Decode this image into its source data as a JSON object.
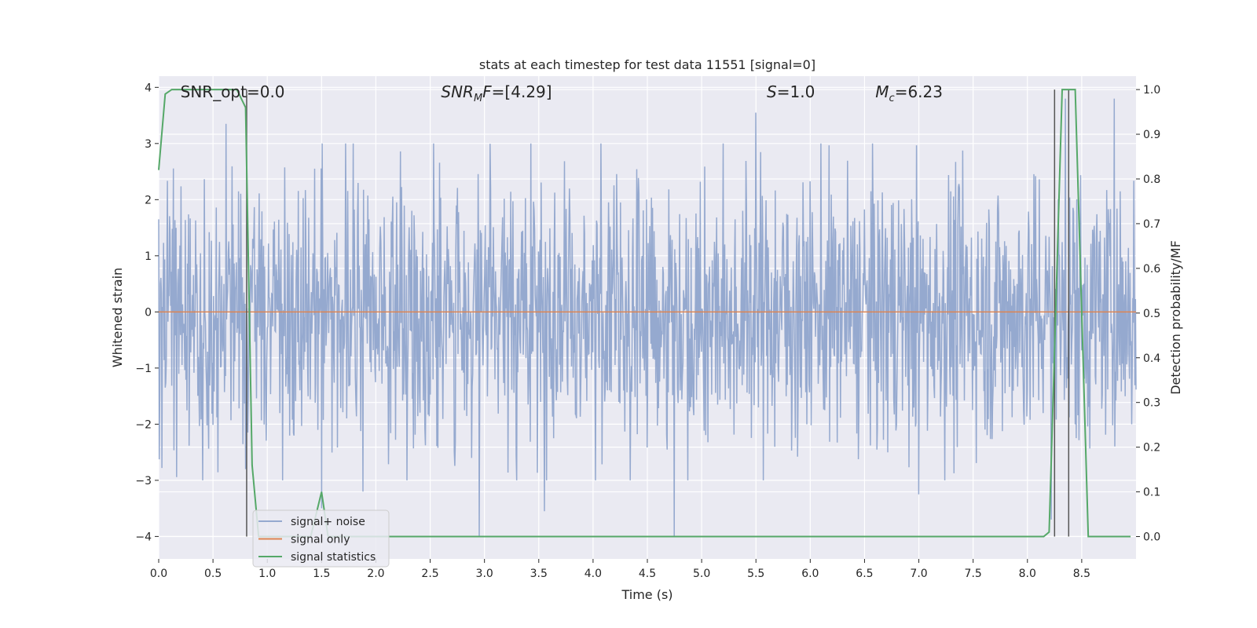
{
  "chart_data": {
    "type": "line",
    "title": "stats at each timestep for test data 11551 [signal=0]",
    "xlabel": "Time (s)",
    "ylabel": "Whitened strain",
    "y2label": "Detection probability/MF",
    "xlim": [
      0.0,
      9.0
    ],
    "ylim": [
      -4.4,
      4.2
    ],
    "y2lim": [
      -0.05,
      1.03
    ],
    "xticks": [
      0.0,
      0.5,
      1.0,
      1.5,
      2.0,
      2.5,
      3.0,
      3.5,
      4.0,
      4.5,
      5.0,
      5.5,
      6.0,
      6.5,
      7.0,
      7.5,
      8.0,
      8.5
    ],
    "xtick_labels": [
      "0.0",
      "0.5",
      "1.0",
      "1.5",
      "2.0",
      "2.5",
      "3.0",
      "3.5",
      "4.0",
      "4.5",
      "5.0",
      "5.5",
      "6.0",
      "6.5",
      "7.0",
      "7.5",
      "8.0",
      "8.5"
    ],
    "yticks": [
      -4,
      -3,
      -2,
      -1,
      0,
      1,
      2,
      3,
      4
    ],
    "ytick_labels": [
      "−4",
      "−3",
      "−2",
      "−1",
      "0",
      "1",
      "2",
      "3",
      "4"
    ],
    "y2ticks": [
      0.0,
      0.1,
      0.2,
      0.3,
      0.4,
      0.5,
      0.6,
      0.7,
      0.8,
      0.9,
      1.0
    ],
    "y2tick_labels": [
      "0.0",
      "0.1",
      "0.2",
      "0.3",
      "0.4",
      "0.5",
      "0.6",
      "0.7",
      "0.8",
      "0.9",
      "1.0"
    ],
    "grid": true,
    "legend_position": "lower-left",
    "annotations": [
      {
        "text": "SNR_opt=0.0",
        "x": 0.2
      },
      {
        "text": "SNR_MF=[4.29]",
        "x": 2.6
      },
      {
        "text": "S=1.0",
        "x": 5.6
      },
      {
        "text": "M_c=6.23",
        "x": 6.6
      }
    ],
    "series": [
      {
        "name": "signal+ noise",
        "color": "#95a9cf",
        "axis": "left",
        "description": "whitened strain noise, roughly within ±2.5 with spikes to about ±4",
        "envelope": {
          "x_range": [
            0.0,
            9.0
          ],
          "typical_amplitude": 2.0,
          "peaks": [
            {
              "x": 0.62,
              "y": 3.35
            },
            {
              "x": 0.8,
              "y": -2.8
            },
            {
              "x": 1.5,
              "y": -3.5
            },
            {
              "x": 1.88,
              "y": -3.2
            },
            {
              "x": 2.95,
              "y": -4.0
            },
            {
              "x": 3.55,
              "y": -3.55
            },
            {
              "x": 4.75,
              "y": -4.0
            },
            {
              "x": 5.5,
              "y": 3.55
            },
            {
              "x": 7.0,
              "y": -3.25
            },
            {
              "x": 8.35,
              "y": 3.8
            },
            {
              "x": 8.8,
              "y": 3.8
            },
            {
              "x": 8.22,
              "y": -3.7
            }
          ]
        }
      },
      {
        "name": "signal only",
        "color": "#dd8452",
        "axis": "left",
        "x": [
          0.0,
          9.0
        ],
        "y": [
          0.0,
          0.0
        ]
      },
      {
        "name": "signal statistics",
        "color": "#55a868",
        "axis": "right",
        "x": [
          0.0,
          0.06,
          0.12,
          0.18,
          0.24,
          0.3,
          0.36,
          0.42,
          0.48,
          0.54,
          0.6,
          0.66,
          0.72,
          0.8,
          0.86,
          0.92,
          0.98,
          1.1,
          1.25,
          1.4,
          1.5,
          1.56,
          1.62,
          1.8,
          2.5,
          3.0,
          4.0,
          5.0,
          6.0,
          7.0,
          8.0,
          8.15,
          8.2,
          8.26,
          8.32,
          8.38,
          8.44,
          8.5,
          8.56,
          8.7,
          8.95
        ],
        "y": [
          0.82,
          0.99,
          1.0,
          1.0,
          1.0,
          1.0,
          1.0,
          1.0,
          1.0,
          1.0,
          1.0,
          1.0,
          1.0,
          0.96,
          0.16,
          0.0,
          0.0,
          0.0,
          0.0,
          0.0,
          0.1,
          0.0,
          0.0,
          0.0,
          0.0,
          0.0,
          0.0,
          0.0,
          0.0,
          0.0,
          0.0,
          0.0,
          0.01,
          0.5,
          1.0,
          1.0,
          1.0,
          0.5,
          0.0,
          0.0,
          0.0
        ]
      }
    ],
    "vertical_markers": {
      "color": "#555555",
      "x": [
        0.81,
        8.25,
        8.38
      ],
      "ymin": 0.0,
      "ymax": 1.0
    }
  }
}
